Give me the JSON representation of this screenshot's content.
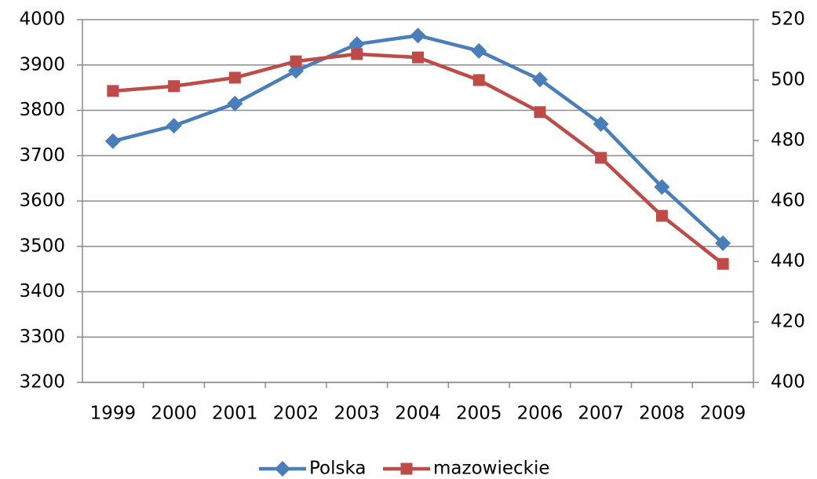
{
  "chart_data": {
    "type": "line",
    "categories": [
      "1999",
      "2000",
      "2001",
      "2002",
      "2003",
      "2004",
      "2005",
      "2006",
      "2007",
      "2008",
      "2009"
    ],
    "series": [
      {
        "name": "Polska",
        "color": "#4a7ebb",
        "marker": "diamond",
        "values": [
          3732,
          3766,
          3815,
          3887,
          3946,
          3965,
          3931,
          3868,
          3770,
          3631,
          3507
        ]
      },
      {
        "name": "mazowieckie",
        "color": "#be4b48",
        "marker": "square",
        "axis": "y2",
        "values": [
          496.4,
          498,
          500.8,
          506.2,
          508.6,
          507.5,
          500,
          489.4,
          474.3,
          455.1,
          439.2
        ]
      }
    ],
    "ylim": [
      3200,
      4000
    ],
    "yticks": [
      3200,
      3300,
      3400,
      3500,
      3600,
      3700,
      3800,
      3900,
      4000
    ],
    "y2lim": [
      400,
      520
    ],
    "y2ticks": [
      400,
      420,
      440,
      460,
      480,
      500,
      520
    ],
    "grid": true,
    "legend": "bottom"
  }
}
